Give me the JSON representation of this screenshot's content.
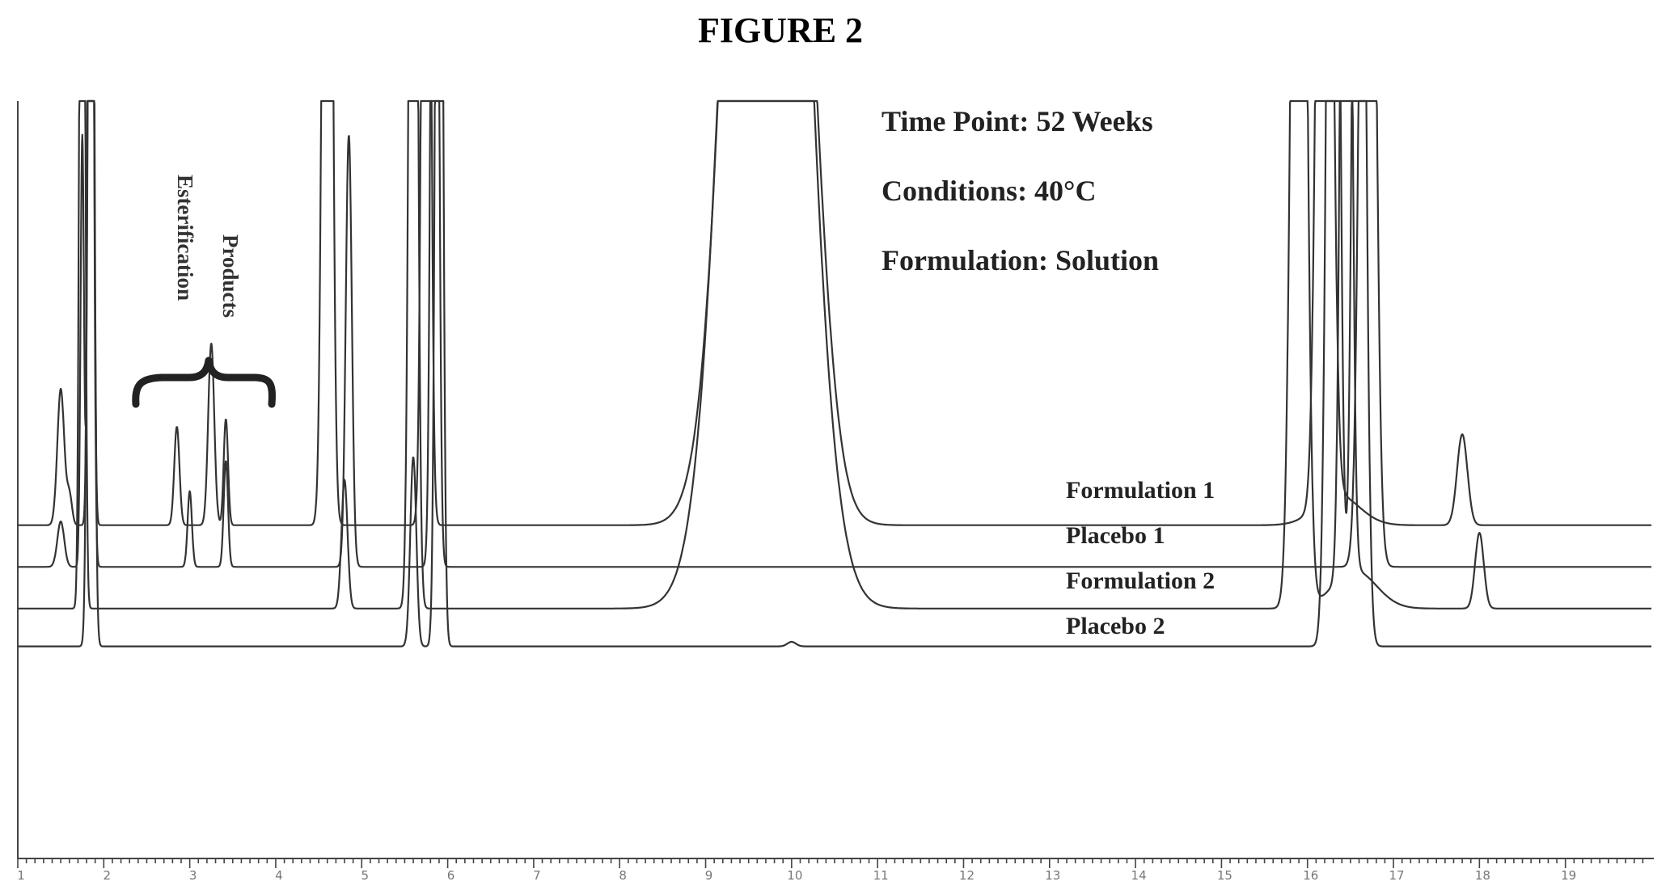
{
  "figure_title": "FIGURE 2",
  "annotations": {
    "time_point": "Time Point: 52 Weeks",
    "conditions": "Conditions: 40°C",
    "formulation": "Formulation: Solution",
    "bracket_label_line1": "Esterification",
    "bracket_label_line2": "Products"
  },
  "chart_data": {
    "type": "line",
    "title": "FIGURE 2",
    "xlabel": "",
    "ylabel": "",
    "xlim": [
      1,
      20
    ],
    "ylim": [
      0,
      100
    ],
    "x_ticks": [
      1,
      2,
      3,
      4,
      5,
      6,
      7,
      8,
      9,
      10,
      11,
      12,
      13,
      14,
      15,
      16,
      17,
      18,
      19
    ],
    "grid": false,
    "legend": "inline labels",
    "series": [
      {
        "name": "Formulation 1",
        "baseline": 44,
        "peaks": [
          {
            "x": 1.5,
            "h": 18,
            "w": 0.04
          },
          {
            "x": 1.6,
            "h": 4,
            "w": 0.03
          },
          {
            "x": 1.85,
            "h": 200,
            "w": 0.025
          },
          {
            "x": 2.85,
            "h": 13,
            "w": 0.03
          },
          {
            "x": 3.25,
            "h": 24,
            "w": 0.035
          },
          {
            "x": 3.42,
            "h": 14,
            "w": 0.025
          },
          {
            "x": 4.6,
            "h": 200,
            "w": 0.045
          },
          {
            "x": 5.75,
            "h": 200,
            "w": 0.04
          },
          {
            "x": 9.7,
            "h": 200,
            "w": 0.35
          },
          {
            "x": 10.25,
            "h": 10,
            "w": 0.2
          },
          {
            "x": 16.2,
            "h": 200,
            "w": 0.07
          },
          {
            "x": 16.35,
            "h": 4,
            "w": 0.25
          },
          {
            "x": 17.8,
            "h": 12,
            "w": 0.06
          }
        ]
      },
      {
        "name": "Placebo 1",
        "baseline": 38.5,
        "peaks": [
          {
            "x": 1.5,
            "h": 6,
            "w": 0.04
          },
          {
            "x": 1.75,
            "h": 57,
            "w": 0.02
          },
          {
            "x": 1.85,
            "h": 200,
            "w": 0.025
          },
          {
            "x": 3.0,
            "h": 10,
            "w": 0.025
          },
          {
            "x": 3.42,
            "h": 14,
            "w": 0.025
          },
          {
            "x": 4.85,
            "h": 57,
            "w": 0.035
          },
          {
            "x": 5.85,
            "h": 200,
            "w": 0.035
          },
          {
            "x": 16.7,
            "h": 200,
            "w": 0.07
          }
        ]
      },
      {
        "name": "Formulation 2",
        "baseline": 33,
        "peaks": [
          {
            "x": 1.75,
            "h": 200,
            "w": 0.025
          },
          {
            "x": 4.8,
            "h": 17,
            "w": 0.035
          },
          {
            "x": 5.6,
            "h": 200,
            "w": 0.04
          },
          {
            "x": 9.7,
            "h": 200,
            "w": 0.38
          },
          {
            "x": 15.9,
            "h": 200,
            "w": 0.07
          },
          {
            "x": 16.45,
            "h": 200,
            "w": 0.05
          },
          {
            "x": 16.55,
            "h": 5,
            "w": 0.25
          },
          {
            "x": 18.0,
            "h": 10,
            "w": 0.05
          }
        ]
      },
      {
        "name": "Placebo 2",
        "baseline": 28,
        "peaks": [
          {
            "x": 1.85,
            "h": 200,
            "w": 0.03
          },
          {
            "x": 5.6,
            "h": 25,
            "w": 0.035
          },
          {
            "x": 5.9,
            "h": 200,
            "w": 0.035
          },
          {
            "x": 10.0,
            "h": 0.6,
            "w": 0.05
          },
          {
            "x": 16.3,
            "h": 200,
            "w": 0.06
          },
          {
            "x": 16.6,
            "h": 200,
            "w": 0.06
          }
        ]
      }
    ]
  }
}
